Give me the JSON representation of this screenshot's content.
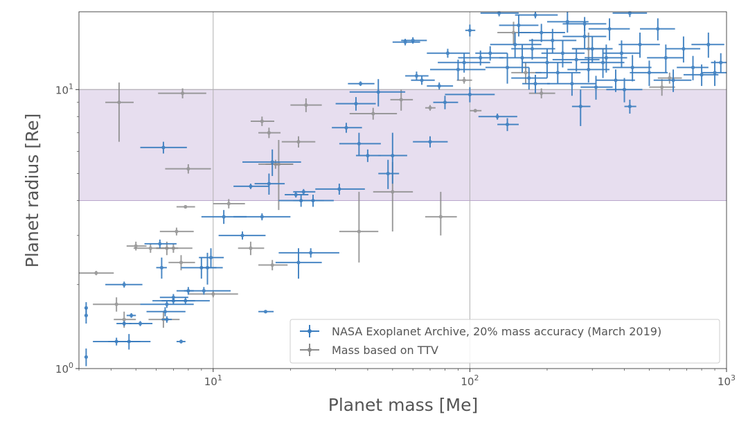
{
  "colors": {
    "blue": "#3a7dbf",
    "gray": "#8c8c8c",
    "band": "#e6dcee",
    "band_edge": "#b9a6cc",
    "grid": "#b0b0b0",
    "axis_text": "#555555"
  },
  "chart_data": {
    "type": "scatter",
    "title": "",
    "xlabel": "Planet mass [Me]",
    "ylabel": "Planet radius [Re]",
    "xscale": "log",
    "yscale": "log",
    "xlim": [
      3,
      1000
    ],
    "ylim": [
      1,
      19
    ],
    "grid": true,
    "legend_position": "lower-right",
    "x_ticks": [
      {
        "value": 10,
        "base": "10",
        "exp": "1"
      },
      {
        "value": 100,
        "base": "10",
        "exp": "2"
      },
      {
        "value": 1000,
        "base": "10",
        "exp": "3"
      }
    ],
    "y_ticks": [
      {
        "value": 1,
        "base": "10",
        "exp": "0"
      },
      {
        "value": 10,
        "base": "10",
        "exp": "1"
      }
    ],
    "shaded_band": {
      "y_from": 4,
      "y_to": 10
    },
    "series": [
      {
        "name": "NASA Exoplanet Archive, 20% mass accuracy (March 2019)",
        "color": "#3a7dbf",
        "points": [
          [
            3.2,
            1.1,
            0,
            0,
            0.08,
            0.08
          ],
          [
            3.2,
            1.55,
            0,
            0,
            0.1,
            0.1
          ],
          [
            3.2,
            1.65,
            0,
            0,
            0.08,
            0.08
          ],
          [
            4.2,
            1.25,
            0.8,
            1.0,
            0.04,
            0.04
          ],
          [
            4.5,
            1.45,
            0.3,
            0.3,
            0.03,
            0.03
          ],
          [
            4.5,
            2.0,
            0.7,
            0.8,
            0.05,
            0.05
          ],
          [
            4.7,
            1.25,
            0.8,
            1.0,
            0.08,
            0.08
          ],
          [
            4.8,
            1.55,
            0.2,
            0.2,
            0.03,
            0.03
          ],
          [
            5.2,
            1.45,
            0.5,
            0.6,
            0.03,
            0.03
          ],
          [
            6.2,
            2.8,
            0.8,
            1.0,
            0.1,
            0.1
          ],
          [
            6.3,
            2.3,
            0.3,
            0.3,
            0.2,
            0.2
          ],
          [
            6.5,
            1.6,
            1.0,
            1.3,
            0.06,
            0.06
          ],
          [
            6.6,
            1.7,
            1.4,
            1.8,
            0.05,
            0.05
          ],
          [
            6.6,
            1.5,
            0.3,
            0.3,
            0.04,
            0.04
          ],
          [
            7.0,
            1.8,
            0.8,
            1.0,
            0.05,
            0.05
          ],
          [
            7.0,
            1.75,
            1.2,
            1.5,
            0.05,
            0.05
          ],
          [
            7.5,
            1.25,
            0.3,
            0.3,
            0.02,
            0.02
          ],
          [
            7.8,
            1.75,
            1.5,
            1.9,
            0.05,
            0.05
          ],
          [
            8.0,
            1.9,
            0.3,
            0.4,
            0.06,
            0.06
          ],
          [
            6.4,
            6.2,
            1.2,
            1.5,
            0.3,
            0.3
          ],
          [
            9.0,
            2.3,
            1.5,
            1.9,
            0.2,
            0.2
          ],
          [
            9.2,
            1.9,
            2.0,
            2.5,
            0.06,
            0.06
          ],
          [
            9.5,
            2.3,
            0.6,
            0.8,
            0.3,
            0.3
          ],
          [
            9.8,
            2.5,
            1.0,
            1.2,
            0.2,
            0.2
          ],
          [
            11.0,
            3.5,
            2.0,
            2.5,
            0.2,
            0.2
          ],
          [
            13.0,
            3.0,
            2.5,
            3.0,
            0.1,
            0.1
          ],
          [
            14.0,
            4.5,
            2.0,
            2.5,
            0.1,
            0.1
          ],
          [
            15.5,
            3.5,
            3.5,
            4.5,
            0.1,
            0.1
          ],
          [
            16.0,
            1.6,
            1.0,
            1.2,
            0.02,
            0.02
          ],
          [
            16.5,
            4.6,
            2.0,
            2.5,
            0.4,
            0.4
          ],
          [
            17.0,
            5.5,
            4.0,
            5.0,
            0.6,
            0.6
          ],
          [
            21.0,
            4.2,
            2.0,
            2.5,
            0.1,
            0.1
          ],
          [
            21.5,
            2.4,
            4.0,
            5.0,
            0.3,
            0.3
          ],
          [
            22.0,
            4.0,
            4.0,
            5.0,
            0.2,
            0.2
          ],
          [
            22.5,
            4.3,
            2.0,
            2.5,
            0.1,
            0.1
          ],
          [
            24.0,
            2.6,
            6.0,
            7.0,
            0.1,
            0.1
          ],
          [
            24.5,
            4.0,
            4.0,
            5.0,
            0.2,
            0.2
          ],
          [
            31.0,
            4.4,
            6.0,
            8.0,
            0.2,
            0.2
          ],
          [
            33.0,
            7.3,
            4.0,
            5.0,
            0.3,
            0.3
          ],
          [
            36.0,
            8.9,
            6.0,
            7.0,
            0.5,
            0.5
          ],
          [
            37.0,
            6.4,
            6.0,
            8.0,
            0.6,
            0.6
          ],
          [
            37.5,
            10.5,
            4.0,
            5.0,
            0.2,
            0.2
          ],
          [
            40.0,
            5.8,
            4.0,
            5.0,
            0.3,
            0.3
          ],
          [
            44.0,
            9.8,
            10.0,
            12.0,
            1.1,
            1.1
          ],
          [
            48.0,
            5.0,
            4.0,
            5.0,
            0.6,
            0.6
          ],
          [
            50.0,
            5.8,
            6.0,
            7.0,
            1.2,
            1.2
          ],
          [
            56.0,
            14.8,
            6.0,
            8.0,
            0.4,
            0.4
          ],
          [
            60.0,
            15.0,
            6.0,
            8.0,
            0.4,
            0.4
          ],
          [
            62.0,
            11.2,
            6.0,
            7.0,
            0.4,
            0.4
          ],
          [
            65.0,
            10.8,
            6.0,
            8.0,
            0.4,
            0.4
          ],
          [
            70.0,
            6.5,
            10.0,
            12.0,
            0.3,
            0.3
          ],
          [
            76.0,
            10.3,
            8.0,
            10.0,
            0.3,
            0.3
          ],
          [
            80.0,
            9.0,
            8.0,
            10.0,
            0.5,
            0.5
          ],
          [
            82.0,
            13.5,
            14.0,
            18.0,
            0.5,
            0.5
          ],
          [
            90.0,
            11.8,
            20.0,
            25.0,
            1.0,
            1.0
          ],
          [
            95.0,
            12.5,
            20.0,
            25.0,
            1.0,
            1.0
          ],
          [
            100.0,
            9.6,
            20.0,
            25.0,
            0.6,
            0.6
          ],
          [
            100.0,
            16.3,
            4.0,
            5.0,
            0.8,
            0.8
          ],
          [
            110.0,
            13.0,
            20.0,
            25.0,
            0.8,
            0.8
          ],
          [
            120.0,
            13.5,
            15.0,
            20.0,
            0.8,
            0.8
          ],
          [
            128.0,
            8.0,
            20.0,
            25.0,
            0.2,
            0.2
          ],
          [
            140.0,
            7.5,
            12.0,
            15.0,
            0.4,
            0.4
          ],
          [
            140.0,
            12.0,
            25.0,
            30.0,
            1.5,
            1.5
          ],
          [
            150.0,
            14.5,
            30.0,
            40.0,
            1.5,
            1.5
          ],
          [
            155.0,
            17.0,
            25.0,
            30.0,
            1.5,
            1.5
          ],
          [
            160.0,
            13.0,
            30.0,
            40.0,
            1.5,
            1.5
          ],
          [
            170.0,
            11.0,
            25.0,
            30.0,
            1.0,
            1.0
          ],
          [
            175.0,
            14.0,
            30.0,
            40.0,
            1.2,
            1.2
          ],
          [
            180.0,
            10.5,
            20.0,
            25.0,
            0.8,
            0.8
          ],
          [
            190.0,
            16.0,
            35.0,
            45.0,
            1.2,
            1.2
          ],
          [
            200.0,
            12.5,
            40.0,
            50.0,
            1.5,
            1.5
          ],
          [
            210.0,
            15.0,
            40.0,
            50.0,
            1.5,
            1.5
          ],
          [
            220.0,
            11.5,
            40.0,
            50.0,
            1.0,
            1.0
          ],
          [
            230.0,
            13.5,
            40.0,
            50.0,
            1.5,
            1.5
          ],
          [
            240.0,
            17.5,
            40.0,
            50.0,
            1.5,
            1.5
          ],
          [
            250.0,
            10.5,
            50.0,
            60.0,
            1.0,
            1.0
          ],
          [
            260.0,
            12.8,
            50.0,
            60.0,
            1.2,
            1.2
          ],
          [
            270.0,
            8.7,
            20.0,
            25.0,
            1.3,
            1.3
          ],
          [
            280.0,
            15.5,
            50.0,
            60.0,
            1.5,
            1.5
          ],
          [
            290.0,
            11.8,
            50.0,
            60.0,
            1.2,
            1.2
          ],
          [
            300.0,
            14.0,
            50.0,
            60.0,
            1.5,
            1.5
          ],
          [
            310.0,
            10.2,
            40.0,
            50.0,
            1.0,
            1.0
          ],
          [
            330.0,
            12.5,
            60.0,
            70.0,
            1.5,
            1.5
          ],
          [
            340.0,
            13.0,
            60.0,
            70.0,
            1.5,
            1.5
          ],
          [
            350.0,
            16.5,
            60.0,
            70.0,
            1.5,
            1.5
          ],
          [
            370.0,
            10.8,
            60.0,
            70.0,
            1.0,
            1.0
          ],
          [
            390.0,
            13.5,
            60.0,
            70.0,
            1.5,
            1.5
          ],
          [
            400.0,
            10.0,
            60.0,
            70.0,
            1.0,
            1.0
          ],
          [
            420.0,
            8.7,
            20.0,
            25.0,
            0.5,
            0.5
          ],
          [
            430.0,
            12.0,
            70.0,
            80.0,
            1.3,
            1.3
          ],
          [
            460.0,
            14.5,
            80.0,
            90.0,
            1.5,
            1.5
          ],
          [
            500.0,
            11.5,
            80.0,
            90.0,
            1.2,
            1.2
          ],
          [
            540.0,
            16.5,
            80.0,
            90.0,
            1.5,
            1.5
          ],
          [
            580.0,
            13.0,
            90.0,
            100.0,
            1.5,
            1.5
          ],
          [
            620.0,
            10.8,
            100.0,
            110.0,
            1.0,
            1.0
          ],
          [
            680.0,
            14.0,
            100.0,
            110.0,
            1.5,
            1.5
          ],
          [
            740.0,
            12.0,
            100.0,
            110.0,
            1.2,
            1.2
          ],
          [
            800.0,
            11.3,
            120.0,
            130.0,
            1.0,
            1.0
          ],
          [
            850.0,
            14.5,
            120.0,
            130.0,
            1.5,
            1.5
          ],
          [
            900.0,
            11.5,
            100.0,
            110.0,
            1.2,
            1.2
          ],
          [
            950.0,
            12.5,
            80.0,
            90.0,
            1.0,
            1.0
          ],
          [
            420.0,
            18.8,
            60.0,
            70.0,
            0.6,
            0.6
          ],
          [
            280.0,
            17.2,
            50.0,
            60.0,
            1.0,
            1.0
          ],
          [
            180.0,
            18.5,
            30.0,
            40.0,
            0.5,
            0.5
          ],
          [
            130.0,
            18.8,
            20.0,
            25.0,
            0.5,
            0.5
          ]
        ]
      },
      {
        "name": "Mass based on TTV",
        "color": "#8c8c8c",
        "points": [
          [
            3.5,
            2.2,
            0.5,
            0.6,
            0.04,
            0.04
          ],
          [
            4.2,
            1.7,
            0.8,
            1.0,
            0.1,
            0.1
          ],
          [
            4.3,
            9.0,
            0.5,
            0.6,
            2.5,
            1.6
          ],
          [
            4.5,
            1.5,
            0.4,
            0.5,
            0.1,
            0.1
          ],
          [
            5.0,
            2.75,
            0.4,
            0.5,
            0.1,
            0.1
          ],
          [
            5.7,
            2.7,
            0.8,
            1.0,
            0.1,
            0.1
          ],
          [
            6.4,
            1.5,
            0.8,
            1.0,
            0.1,
            0.1
          ],
          [
            6.6,
            2.7,
            0.6,
            0.7,
            0.15,
            0.15
          ],
          [
            7.0,
            2.7,
            1.0,
            1.3,
            0.1,
            0.1
          ],
          [
            7.2,
            3.1,
            1.0,
            1.2,
            0.1,
            0.1
          ],
          [
            7.5,
            2.4,
            0.8,
            1.0,
            0.15,
            0.15
          ],
          [
            7.6,
            9.7,
            1.5,
            1.8,
            0.4,
            0.4
          ],
          [
            7.8,
            3.8,
            0.6,
            0.7,
            0.05,
            0.05
          ],
          [
            8.0,
            5.2,
            1.5,
            1.8,
            0.2,
            0.2
          ],
          [
            10.0,
            1.85,
            2.0,
            2.5,
            0.05,
            0.05
          ],
          [
            11.5,
            3.9,
            1.5,
            1.8,
            0.15,
            0.15
          ],
          [
            14.0,
            2.7,
            1.5,
            1.8,
            0.15,
            0.15
          ],
          [
            15.5,
            7.7,
            1.5,
            1.8,
            0.3,
            0.3
          ],
          [
            16.5,
            7.0,
            1.5,
            1.8,
            0.3,
            0.3
          ],
          [
            17.0,
            2.35,
            2.0,
            2.5,
            0.1,
            0.1
          ],
          [
            17.5,
            5.4,
            2.5,
            3.0,
            0.2,
            0.2
          ],
          [
            18.0,
            5.4,
            2.0,
            2.5,
            1.7,
            1.2
          ],
          [
            21.5,
            6.5,
            3.0,
            3.5,
            0.3,
            0.3
          ],
          [
            23.0,
            8.8,
            3.0,
            3.5,
            0.5,
            0.5
          ],
          [
            37.0,
            3.1,
            6.0,
            7.0,
            0.7,
            1.2
          ],
          [
            42.0,
            8.2,
            8.0,
            10.0,
            0.4,
            0.4
          ],
          [
            50.0,
            4.3,
            8.0,
            10.0,
            1.2,
            1.2
          ],
          [
            54.0,
            9.2,
            5.0,
            6.0,
            0.8,
            0.8
          ],
          [
            70.0,
            8.6,
            3.0,
            3.5,
            0.2,
            0.2
          ],
          [
            77.0,
            3.5,
            10.0,
            12.0,
            0.5,
            0.8
          ],
          [
            95.0,
            10.8,
            6.0,
            7.0,
            0.3,
            0.3
          ],
          [
            105.0,
            8.4,
            5.0,
            6.0,
            0.1,
            0.1
          ],
          [
            148.0,
            16.0,
            20.0,
            25.0,
            1.5,
            1.5
          ],
          [
            165.0,
            11.5,
            20.0,
            25.0,
            1.0,
            1.0
          ],
          [
            190.0,
            9.7,
            20.0,
            25.0,
            0.4,
            0.4
          ],
          [
            290.0,
            14.0,
            40.0,
            50.0,
            2.0,
            2.0
          ],
          [
            560.0,
            10.2,
            60.0,
            70.0,
            0.7,
            0.7
          ],
          [
            600.0,
            11.0,
            60.0,
            70.0,
            0.5,
            0.5
          ]
        ]
      }
    ]
  }
}
